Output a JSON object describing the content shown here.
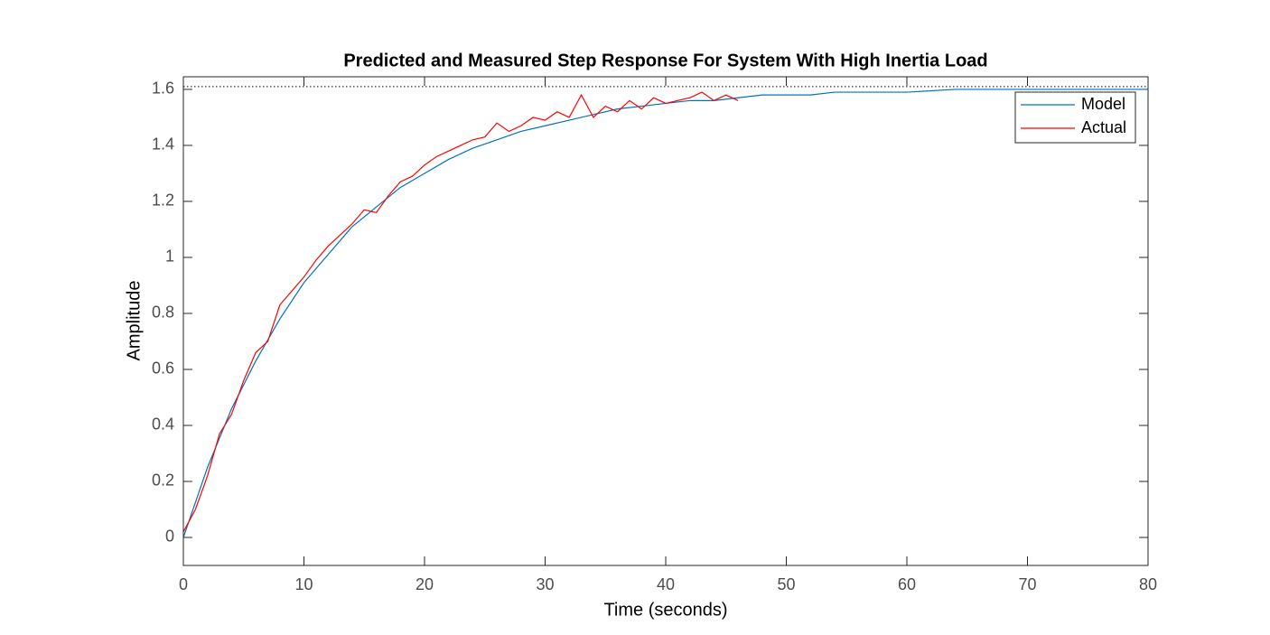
{
  "chart_data": {
    "type": "line",
    "title": "Predicted and Measured Step Response For System With High Inertia Load",
    "x_label": "Time (seconds)",
    "y_label": "Amplitude",
    "xlim": [
      0,
      80
    ],
    "xticks": [
      0,
      10,
      20,
      30,
      40,
      50,
      60,
      70,
      80
    ],
    "ylim": [
      -0.1,
      1.645
    ],
    "yticks": [
      0,
      0.2,
      0.4,
      0.6,
      0.8,
      1,
      1.2,
      1.4,
      1.6
    ],
    "grid": false,
    "legend_position": "northeast",
    "steady_state": 1.61,
    "series": [
      {
        "name": "Model",
        "color": "#0072bd",
        "x": [
          0,
          2,
          4,
          6,
          8,
          10,
          12,
          14,
          16,
          18,
          20,
          22,
          24,
          26,
          28,
          30,
          32,
          34,
          36,
          38,
          40,
          42,
          44,
          46,
          48,
          50,
          52,
          54,
          56,
          58,
          60,
          64,
          68,
          72,
          76,
          80
        ],
        "values": [
          0,
          0.25,
          0.46,
          0.63,
          0.78,
          0.91,
          1.01,
          1.11,
          1.18,
          1.25,
          1.3,
          1.35,
          1.39,
          1.42,
          1.45,
          1.47,
          1.49,
          1.51,
          1.53,
          1.54,
          1.55,
          1.56,
          1.56,
          1.57,
          1.58,
          1.58,
          1.58,
          1.59,
          1.59,
          1.59,
          1.59,
          1.6,
          1.6,
          1.6,
          1.6,
          1.6
        ]
      },
      {
        "name": "Actual",
        "color": "#ff0000",
        "x": [
          0,
          1,
          2,
          3,
          4,
          5,
          6,
          7,
          8,
          9,
          10,
          11,
          12,
          13,
          14,
          15,
          16,
          17,
          18,
          19,
          20,
          21,
          22,
          23,
          24,
          25,
          26,
          27,
          28,
          29,
          30,
          31,
          32,
          33,
          34,
          35,
          36,
          37,
          38,
          39,
          40,
          41,
          42,
          43,
          44,
          45,
          46
        ],
        "values": [
          0.02,
          0.1,
          0.22,
          0.37,
          0.44,
          0.56,
          0.66,
          0.7,
          0.83,
          0.88,
          0.93,
          0.99,
          1.04,
          1.08,
          1.12,
          1.17,
          1.16,
          1.22,
          1.27,
          1.29,
          1.33,
          1.36,
          1.38,
          1.4,
          1.42,
          1.43,
          1.48,
          1.45,
          1.47,
          1.5,
          1.49,
          1.52,
          1.5,
          1.58,
          1.5,
          1.54,
          1.52,
          1.56,
          1.53,
          1.57,
          1.55,
          1.56,
          1.57,
          1.59,
          1.56,
          1.58,
          1.56
        ]
      }
    ]
  }
}
